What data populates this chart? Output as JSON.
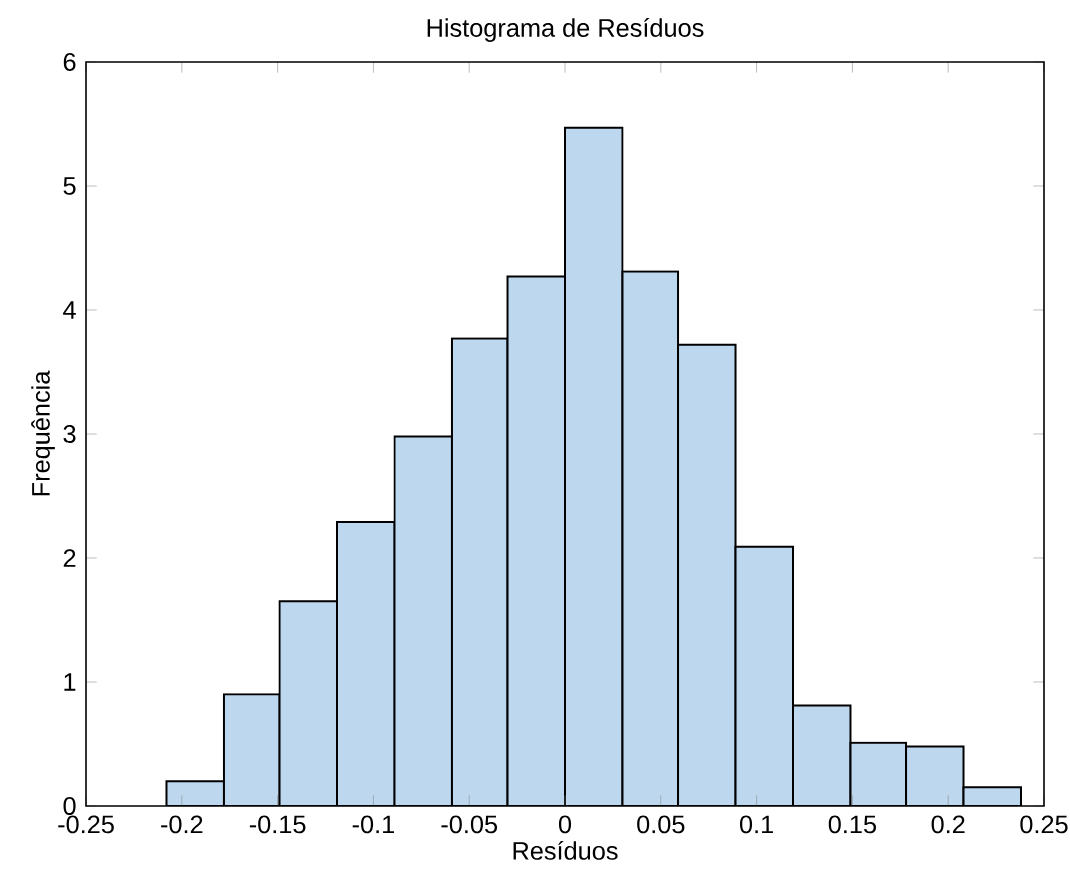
{
  "chart_data": {
    "type": "histogram",
    "title": "Histograma de Resíduos",
    "xlabel": "Resíduos",
    "ylabel": "Frequência",
    "bins": [
      -0.208,
      -0.178,
      -0.149,
      -0.119,
      -0.089,
      -0.059,
      -0.03,
      0,
      0.03,
      0.059,
      0.089,
      0.119,
      0.149,
      0.178,
      0.208,
      0.238
    ],
    "values": [
      0.2,
      0.9,
      1.65,
      2.29,
      2.98,
      3.77,
      4.27,
      5.47,
      4.31,
      3.72,
      2.09,
      0.81,
      0.51,
      0.48,
      0.15
    ],
    "color": "#bdd7ee",
    "xlim": [
      -0.25,
      0.25
    ],
    "xticks": [
      -0.25,
      -0.2,
      -0.15,
      -0.1,
      -0.05,
      0,
      0.05,
      0.1,
      0.15,
      0.2,
      0.25
    ],
    "ylim": [
      0,
      6
    ],
    "yticks": [
      0,
      1,
      2,
      3,
      4,
      5,
      6
    ]
  }
}
